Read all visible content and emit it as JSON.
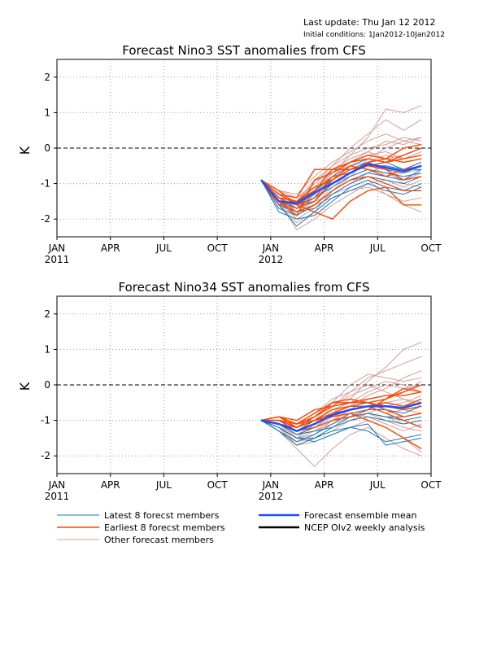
{
  "header": {
    "last_update": "Last update: Thu Jan 12 2012",
    "initial_conditions": "Initial conditions: 1Jan2012-10Jan2012"
  },
  "colors": {
    "latest": "#1f77b4",
    "earliest": "#ff4500",
    "other": "#d4a097",
    "mean": "#1f4fff",
    "analysis": "#000000"
  },
  "legend": {
    "latest": "Latest 8 forecst members",
    "earliest": "Earliest 8 forecst members",
    "other": "Other forecast members",
    "mean": "Forecast ensemble mean",
    "analysis": "NCEP OIv2 weekly analysis"
  },
  "chart_data": [
    {
      "type": "line",
      "title": "Forecast Nino3 SST anomalies from CFS",
      "ylabel": "K",
      "ylim": [
        -2.5,
        2.5
      ],
      "yticks": [
        -2,
        -1,
        0,
        1,
        2
      ],
      "xlim": [
        "2011-01",
        "2012-10"
      ],
      "xtick_labels": [
        {
          "month": "JAN",
          "year": "2011"
        },
        {
          "month": "APR",
          "year": ""
        },
        {
          "month": "JUL",
          "year": ""
        },
        {
          "month": "OCT",
          "year": ""
        },
        {
          "month": "JAN",
          "year": "2012"
        },
        {
          "month": "APR",
          "year": ""
        },
        {
          "month": "JUL",
          "year": ""
        },
        {
          "month": "OCT",
          "year": ""
        }
      ],
      "grid": true,
      "zero_line": true,
      "x": [
        "2011-12-15",
        "2012-01-15",
        "2012-02-15",
        "2012-03-15",
        "2012-04-15",
        "2012-05-15",
        "2012-06-15",
        "2012-07-15",
        "2012-08-15",
        "2012-09-15"
      ],
      "ensemble_mean": [
        -0.9,
        -1.5,
        -1.55,
        -1.25,
        -1.0,
        -0.7,
        -0.45,
        -0.55,
        -0.65,
        -0.5
      ],
      "latest_members": [
        [
          -0.9,
          -1.7,
          -1.9,
          -1.6,
          -1.2,
          -0.9,
          -0.7,
          -0.8,
          -0.9,
          -0.6
        ],
        [
          -0.9,
          -1.6,
          -1.8,
          -1.7,
          -1.3,
          -1.0,
          -0.8,
          -0.9,
          -1.0,
          -0.8
        ],
        [
          -0.9,
          -1.5,
          -1.6,
          -1.3,
          -0.9,
          -0.6,
          -0.4,
          -0.6,
          -0.7,
          -0.5
        ],
        [
          -0.9,
          -1.8,
          -2.0,
          -1.9,
          -1.5,
          -1.1,
          -0.9,
          -1.1,
          -1.2,
          -1.0
        ],
        [
          -0.9,
          -1.4,
          -1.5,
          -1.2,
          -0.8,
          -0.5,
          -0.3,
          -0.4,
          -0.6,
          -0.4
        ],
        [
          -0.9,
          -1.6,
          -2.2,
          -1.8,
          -1.4,
          -1.2,
          -1.0,
          -1.2,
          -1.3,
          -1.1
        ],
        [
          -0.9,
          -1.5,
          -1.7,
          -1.4,
          -1.1,
          -0.8,
          -0.6,
          -0.7,
          -0.8,
          -0.7
        ],
        [
          -0.9,
          -1.3,
          -1.6,
          -1.5,
          -1.0,
          -0.7,
          -0.5,
          -0.5,
          -0.6,
          -0.6
        ]
      ],
      "earliest_members": [
        [
          -0.9,
          -1.3,
          -1.4,
          -0.6,
          -0.6,
          -0.6,
          -0.5,
          -0.4,
          -0.2,
          0.0
        ],
        [
          -0.9,
          -1.2,
          -1.6,
          -1.8,
          -2.0,
          -1.5,
          -1.2,
          -1.1,
          -1.6,
          -1.6
        ],
        [
          -0.9,
          -1.5,
          -1.9,
          -0.9,
          -0.7,
          -0.4,
          -0.3,
          -0.4,
          -0.3,
          -0.2
        ],
        [
          -0.9,
          -1.4,
          -1.7,
          -1.5,
          -0.9,
          -0.6,
          -0.5,
          -0.6,
          -0.9,
          -0.8
        ],
        [
          -0.9,
          -1.6,
          -1.5,
          -1.2,
          -0.6,
          -0.4,
          -0.2,
          -0.3,
          0.0,
          0.1
        ],
        [
          -0.9,
          -1.5,
          -1.8,
          -1.6,
          -1.2,
          -0.9,
          -0.8,
          -1.0,
          -1.2,
          -1.2
        ],
        [
          -0.9,
          -1.3,
          -1.6,
          -1.4,
          -0.8,
          -0.7,
          -0.4,
          -0.3,
          -0.4,
          -0.3
        ],
        [
          -0.9,
          -1.4,
          -1.5,
          -1.1,
          -0.9,
          -0.5,
          -0.6,
          -0.8,
          -0.6,
          -0.5
        ]
      ],
      "other_members": [
        [
          -0.9,
          -1.4,
          -1.6,
          -1.2,
          -0.7,
          -0.2,
          0.3,
          1.1,
          1.0,
          1.2
        ],
        [
          -0.9,
          -1.3,
          -1.5,
          -1.0,
          -0.5,
          0.0,
          0.4,
          0.8,
          0.5,
          0.8
        ],
        [
          -0.9,
          -1.5,
          -1.7,
          -1.3,
          -0.8,
          -0.4,
          -0.1,
          0.2,
          0.1,
          0.3
        ],
        [
          -0.9,
          -1.6,
          -1.9,
          -1.6,
          -1.1,
          -0.7,
          -0.4,
          -0.2,
          -0.3,
          -0.1
        ],
        [
          -0.9,
          -1.2,
          -1.4,
          -1.1,
          -0.6,
          -0.3,
          -0.1,
          -0.3,
          -0.2,
          0.0
        ],
        [
          -0.9,
          -1.5,
          -2.3,
          -2.0,
          -1.6,
          -1.3,
          -1.0,
          -0.9,
          -1.1,
          -0.9
        ],
        [
          -0.9,
          -1.4,
          -1.8,
          -1.5,
          -1.3,
          -1.1,
          -0.9,
          -1.3,
          -1.5,
          -1.4
        ],
        [
          -0.9,
          -1.3,
          -1.5,
          -0.9,
          -0.5,
          -0.2,
          0.0,
          0.1,
          0.3,
          0.2
        ],
        [
          -0.9,
          -1.6,
          -1.7,
          -1.4,
          -1.0,
          -0.8,
          -0.6,
          -0.7,
          -0.9,
          -0.7
        ],
        [
          -0.9,
          -1.5,
          -2.0,
          -1.7,
          -1.3,
          -1.0,
          -0.7,
          -0.5,
          -0.6,
          -0.4
        ],
        [
          -0.9,
          -1.4,
          -1.6,
          -1.2,
          -0.9,
          -0.6,
          -0.5,
          -0.6,
          -1.0,
          -1.1
        ],
        [
          -0.9,
          -1.3,
          -1.4,
          -1.0,
          -0.6,
          -0.4,
          -0.2,
          -0.1,
          -0.3,
          -0.2
        ],
        [
          -0.9,
          -1.5,
          -1.8,
          -1.6,
          -1.4,
          -1.2,
          -1.1,
          -1.3,
          -1.6,
          -1.8
        ],
        [
          -0.9,
          -1.6,
          -2.1,
          -1.8,
          -1.2,
          -0.8,
          -0.3,
          0.0,
          0.2,
          0.1
        ],
        [
          -0.9,
          -1.4,
          -1.7,
          -1.3,
          -0.7,
          -0.5,
          -0.4,
          -0.8,
          -0.7,
          -0.6
        ],
        [
          -0.9,
          -1.2,
          -1.3,
          -0.8,
          -0.4,
          -0.1,
          0.2,
          0.4,
          0.2,
          0.3
        ]
      ]
    },
    {
      "type": "line",
      "title": "Forecast Nino34 SST anomalies from CFS",
      "ylabel": "K",
      "ylim": [
        -2.5,
        2.5
      ],
      "yticks": [
        -2,
        -1,
        0,
        1,
        2
      ],
      "xlim": [
        "2011-01",
        "2012-10"
      ],
      "xtick_labels": [
        {
          "month": "JAN",
          "year": "2011"
        },
        {
          "month": "APR",
          "year": ""
        },
        {
          "month": "JUL",
          "year": ""
        },
        {
          "month": "OCT",
          "year": ""
        },
        {
          "month": "JAN",
          "year": "2012"
        },
        {
          "month": "APR",
          "year": ""
        },
        {
          "month": "JUL",
          "year": ""
        },
        {
          "month": "OCT",
          "year": ""
        }
      ],
      "grid": true,
      "zero_line": true,
      "x": [
        "2011-12-15",
        "2012-01-15",
        "2012-02-15",
        "2012-03-15",
        "2012-04-15",
        "2012-05-15",
        "2012-06-15",
        "2012-07-15",
        "2012-08-15",
        "2012-09-15"
      ],
      "ensemble_mean": [
        -1.0,
        -1.1,
        -1.3,
        -1.1,
        -0.85,
        -0.7,
        -0.6,
        -0.6,
        -0.65,
        -0.5
      ],
      "latest_members": [
        [
          -1.0,
          -1.2,
          -1.5,
          -1.5,
          -1.3,
          -1.2,
          -1.3,
          -1.6,
          -1.5,
          -1.4
        ],
        [
          -1.0,
          -1.1,
          -1.4,
          -1.2,
          -1.0,
          -0.9,
          -0.8,
          -0.9,
          -1.0,
          -0.9
        ],
        [
          -1.0,
          -1.3,
          -1.6,
          -1.4,
          -1.1,
          -0.8,
          -0.7,
          -0.7,
          -0.8,
          -0.6
        ],
        [
          -1.0,
          -1.0,
          -1.3,
          -1.1,
          -0.8,
          -0.7,
          -0.6,
          -0.5,
          -0.6,
          -0.5
        ],
        [
          -1.0,
          -1.2,
          -1.5,
          -1.6,
          -1.4,
          -1.2,
          -1.1,
          -1.7,
          -1.6,
          -1.5
        ],
        [
          -1.0,
          -1.1,
          -1.4,
          -1.3,
          -1.2,
          -1.0,
          -0.9,
          -1.0,
          -1.1,
          -1.0
        ],
        [
          -1.0,
          -1.3,
          -1.7,
          -1.5,
          -1.2,
          -0.9,
          -0.8,
          -0.9,
          -0.9,
          -0.8
        ],
        [
          -1.0,
          -1.1,
          -1.3,
          -1.0,
          -0.7,
          -0.6,
          -0.5,
          -0.6,
          -0.7,
          -0.6
        ]
      ],
      "earliest_members": [
        [
          -1.0,
          -0.9,
          -1.0,
          -0.7,
          -0.6,
          -0.5,
          -0.5,
          -0.4,
          -0.2,
          0.0
        ],
        [
          -1.0,
          -1.0,
          -1.2,
          -0.9,
          -0.5,
          -0.4,
          -0.5,
          -0.6,
          -0.7,
          -0.6
        ],
        [
          -1.0,
          -0.9,
          -1.1,
          -1.0,
          -0.9,
          -0.8,
          -1.0,
          -1.2,
          -1.5,
          -1.8
        ],
        [
          -1.0,
          -1.0,
          -1.1,
          -0.8,
          -0.5,
          -0.5,
          -0.5,
          -0.7,
          -0.9,
          -0.8
        ],
        [
          -1.0,
          -1.1,
          -1.3,
          -1.2,
          -1.0,
          -0.9,
          -0.7,
          -0.4,
          -0.1,
          -0.2
        ],
        [
          -1.0,
          -0.9,
          -1.2,
          -1.0,
          -0.8,
          -0.6,
          -0.6,
          -0.8,
          -1.0,
          -1.2
        ],
        [
          -1.0,
          -1.0,
          -1.1,
          -0.9,
          -0.6,
          -0.5,
          -0.4,
          -0.3,
          -0.3,
          -0.2
        ],
        [
          -1.0,
          -1.1,
          -1.2,
          -1.0,
          -0.7,
          -0.6,
          -0.6,
          -0.5,
          -0.6,
          -0.4
        ]
      ],
      "other_members": [
        [
          -1.0,
          -1.1,
          -1.4,
          -1.2,
          -0.8,
          -0.4,
          0.1,
          0.5,
          1.0,
          1.2
        ],
        [
          -1.0,
          -1.2,
          -1.5,
          -1.1,
          -0.6,
          -0.2,
          0.2,
          0.4,
          0.6,
          0.8
        ],
        [
          -1.0,
          -1.0,
          -1.3,
          -1.0,
          -0.5,
          0.0,
          0.3,
          0.2,
          0.1,
          0.2
        ],
        [
          -1.0,
          -1.3,
          -1.8,
          -2.3,
          -1.8,
          -1.4,
          -1.2,
          -1.5,
          -1.8,
          -2.0
        ],
        [
          -1.0,
          -1.2,
          -1.4,
          -1.3,
          -1.1,
          -0.9,
          -0.8,
          -0.9,
          -1.1,
          -1.0
        ],
        [
          -1.0,
          -1.1,
          -1.5,
          -1.4,
          -1.0,
          -0.7,
          -0.4,
          -0.3,
          -0.2,
          0.1
        ],
        [
          -1.0,
          -1.2,
          -1.6,
          -1.5,
          -1.3,
          -1.0,
          -0.8,
          -0.6,
          -0.5,
          -0.3
        ],
        [
          -1.0,
          -1.0,
          -1.2,
          -1.0,
          -0.7,
          -0.5,
          -0.2,
          0.0,
          -0.1,
          0.0
        ],
        [
          -1.0,
          -1.1,
          -1.3,
          -1.2,
          -0.9,
          -0.8,
          -0.9,
          -1.1,
          -1.3,
          -1.1
        ],
        [
          -1.0,
          -1.2,
          -1.7,
          -1.6,
          -1.4,
          -1.2,
          -1.0,
          -1.2,
          -1.5,
          -1.9
        ],
        [
          -1.0,
          -1.0,
          -1.3,
          -1.1,
          -0.8,
          -0.6,
          -0.3,
          -0.1,
          0.2,
          0.4
        ],
        [
          -1.0,
          -1.1,
          -1.4,
          -1.2,
          -0.9,
          -0.7,
          -0.6,
          -0.8,
          -0.7,
          -0.8
        ],
        [
          -1.0,
          -1.2,
          -1.5,
          -1.3,
          -1.0,
          -0.8,
          -0.7,
          -0.5,
          -0.4,
          -0.5
        ],
        [
          -1.0,
          -1.1,
          -1.2,
          -0.9,
          -0.6,
          -0.3,
          -0.1,
          0.1,
          0.0,
          -0.2
        ],
        [
          -1.0,
          -1.3,
          -1.6,
          -1.4,
          -1.1,
          -0.9,
          -0.8,
          -1.0,
          -1.2,
          -1.3
        ],
        [
          -1.0,
          -1.0,
          -1.1,
          -0.8,
          -0.4,
          -0.2,
          0.0,
          -0.2,
          -0.4,
          -0.6
        ]
      ]
    }
  ]
}
